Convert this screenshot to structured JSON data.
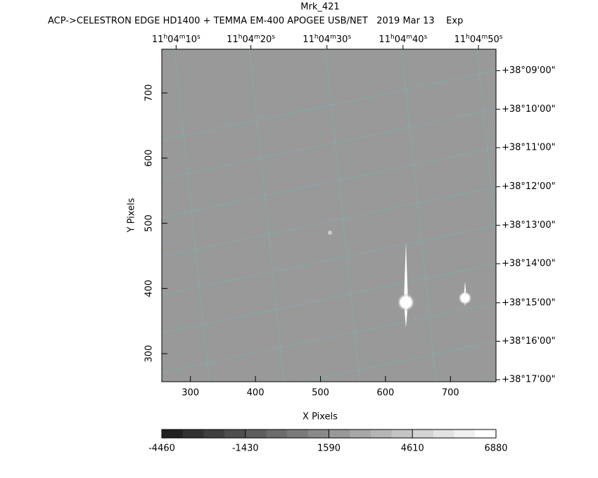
{
  "chart_data": {
    "type": "image",
    "title": "Mrk_421",
    "subtitle": "ACP->CELESTRON EDGE HD1400 + TEMMA EM-400 APOGEE USB/NET   2019 Mar 13    Exp",
    "x_label": "X Pixels",
    "y_label": "Y Pixels",
    "xlim": [
      256,
      770
    ],
    "xticks": [
      300,
      400,
      500,
      600,
      700
    ],
    "ylim": [
      257,
      767
    ],
    "yticks": [
      300,
      400,
      500,
      600,
      700
    ],
    "x2ticks": [
      {
        "value": 278,
        "label": "11h04m10s"
      },
      {
        "value": 393,
        "label": "11h04m20s"
      },
      {
        "value": 510,
        "label": "11h04m30s"
      },
      {
        "value": 627,
        "label": "11h04m40s"
      },
      {
        "value": 743,
        "label": "11h04m50s"
      }
    ],
    "y2ticks": [
      {
        "value": 734,
        "label": "+38°09'00\""
      },
      {
        "value": 675,
        "label": "+38°10'00\""
      },
      {
        "value": 616,
        "label": "+38°11'00\""
      },
      {
        "value": 556,
        "label": "+38°12'00\""
      },
      {
        "value": 497,
        "label": "+38°13'00\""
      },
      {
        "value": 438,
        "label": "+38°14'00\""
      },
      {
        "value": 378,
        "label": "+38°15'00\""
      },
      {
        "value": 319,
        "label": "+38°16'00\""
      },
      {
        "value": 260,
        "label": "+38°17'00\""
      }
    ],
    "colorbar": {
      "ticks": [
        -4460,
        -1430,
        1590,
        4610,
        6880
      ]
    },
    "grid_color": "#40e0e0"
  }
}
